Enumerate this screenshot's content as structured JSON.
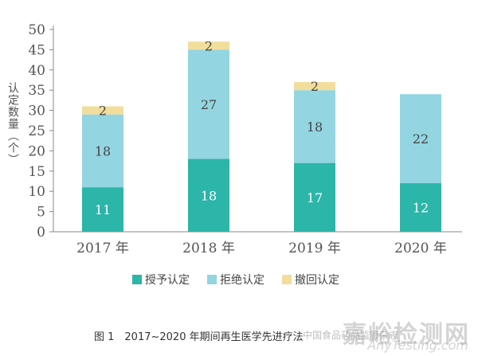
{
  "chart_data": {
    "type": "stacked-bar",
    "categories": [
      "2017 年",
      "2018 年",
      "2019 年",
      "2020 年"
    ],
    "series": [
      {
        "name": "授予认定",
        "color": "#2cb5a9",
        "values": [
          11,
          18,
          17,
          12
        ]
      },
      {
        "name": "拒绝认定",
        "color": "#93d5e1",
        "values": [
          18,
          27,
          18,
          22
        ]
      },
      {
        "name": "撤回认定",
        "color": "#f2de9c",
        "values": [
          2,
          2,
          2,
          0
        ]
      }
    ],
    "ylabel": "认定数量（个）",
    "ylim": [
      0,
      50
    ],
    "yticks": [
      0,
      5,
      10,
      15,
      20,
      25,
      30,
      35,
      40,
      45,
      50
    ],
    "grid": false,
    "legend": "bottom"
  },
  "caption": "图 1　2017~2020 年期间再生医学先进疗法",
  "watermarks": {
    "site": "嘉峪检测网",
    "site_en": "AnyTesting.com",
    "source": "中国食品药品监管杂志"
  }
}
